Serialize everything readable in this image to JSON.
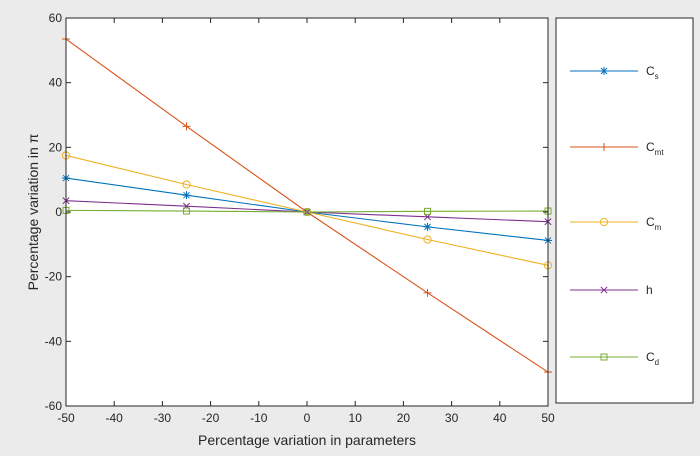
{
  "chart_data": {
    "type": "line",
    "xlabel": "Percentage variation in parameters",
    "ylabel": "Percentage variation in π",
    "xlim": [
      -50,
      50
    ],
    "ylim": [
      -60,
      60
    ],
    "xticks": [
      -50,
      -40,
      -30,
      -20,
      -10,
      0,
      10,
      20,
      30,
      40,
      50
    ],
    "yticks": [
      -60,
      -40,
      -20,
      0,
      20,
      40,
      60
    ],
    "x": [
      -50,
      -25,
      0,
      25,
      50
    ],
    "grid": false,
    "legend_position": "right-outside",
    "series": [
      {
        "name": "C",
        "subscript": "s",
        "marker": "star",
        "color": "#0072BD",
        "values": [
          10.5,
          5.2,
          0,
          -4.6,
          -8.8
        ]
      },
      {
        "name": "C",
        "subscript": "mt",
        "marker": "plus",
        "color": "#D95319",
        "values": [
          53.5,
          26.5,
          0,
          -25,
          -49.5
        ]
      },
      {
        "name": "C",
        "subscript": "m",
        "marker": "circle",
        "color": "#EDB120",
        "values": [
          17.5,
          8.5,
          0,
          -8.5,
          -16.5
        ]
      },
      {
        "name": "h",
        "subscript": "",
        "marker": "x",
        "color": "#7E2F8E",
        "values": [
          3.5,
          1.8,
          0,
          -1.5,
          -3
        ]
      },
      {
        "name": "C",
        "subscript": "d",
        "marker": "square",
        "color": "#77AC30",
        "values": [
          0.5,
          0.3,
          0,
          0.2,
          0.3
        ]
      }
    ]
  }
}
